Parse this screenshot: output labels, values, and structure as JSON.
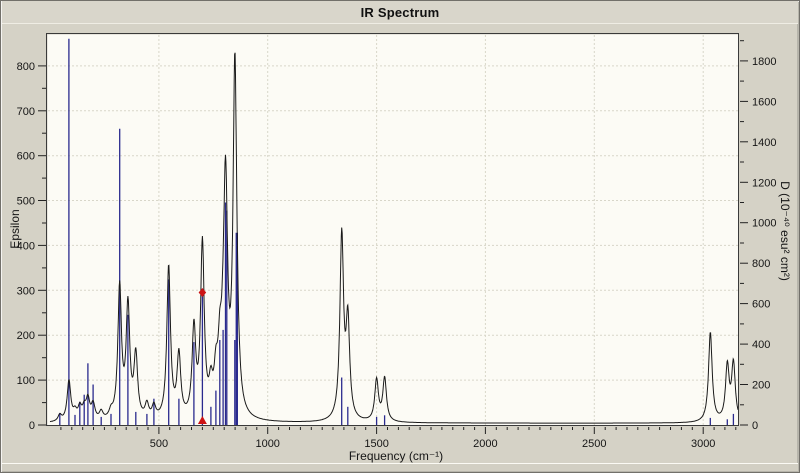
{
  "header": {
    "title": "IR Spectrum"
  },
  "colors": {
    "window_background": "#d5d2c6",
    "plot_background": "#fcfbf5",
    "gridline": "#d8d6c9",
    "plot_frame": "#3a3a3a",
    "envelope_curve": "#1a1a1a",
    "stick": "#2a2a8e",
    "selected_marker": "#cc1414",
    "text": "#151515"
  },
  "chart_data": {
    "type": "line",
    "title": "IR Spectrum",
    "xlabel": "Frequency (cm⁻¹)",
    "ylabel_left": "Epsilon",
    "ylabel_right": "D (10⁻⁴⁰ esu² cm²)",
    "xlim": [
      0,
      3160
    ],
    "ylim_left": [
      0,
      871
    ],
    "ylim_right": [
      0,
      1933
    ],
    "grid": "dashed",
    "x_major_ticks": [
      500,
      1000,
      1500,
      2000,
      2500,
      3000
    ],
    "x_minor_step": 50,
    "y_left_major_ticks": [
      0,
      100,
      200,
      300,
      400,
      500,
      600,
      700,
      800
    ],
    "y_left_minor_step": 50,
    "y_right_major_ticks": [
      0,
      200,
      400,
      600,
      800,
      1000,
      1200,
      1400,
      1600,
      1800
    ],
    "y_right_minor_step": 100,
    "lorentzian_hwhm": 10,
    "baseline_epsilon": 4,
    "series": [
      {
        "name": "epsilon-envelope",
        "axis": "left",
        "style": "lorentzian-sum-curve"
      },
      {
        "name": "dipole-strength-sticks",
        "axis": "right",
        "style": "vertical-sticks"
      }
    ],
    "modes": [
      {
        "frequency": 45,
        "epsilon": 14,
        "d": 60
      },
      {
        "frequency": 87,
        "epsilon": 90,
        "d": 1910
      },
      {
        "frequency": 115,
        "epsilon": 18,
        "d": 50
      },
      {
        "frequency": 137,
        "epsilon": 28,
        "d": 115
      },
      {
        "frequency": 157,
        "epsilon": 25,
        "d": 150
      },
      {
        "frequency": 174,
        "epsilon": 45,
        "d": 305
      },
      {
        "frequency": 198,
        "epsilon": 35,
        "d": 200
      },
      {
        "frequency": 235,
        "epsilon": 18,
        "d": 40
      },
      {
        "frequency": 280,
        "epsilon": 15,
        "d": 55
      },
      {
        "frequency": 320,
        "epsilon": 295,
        "d": 1465
      },
      {
        "frequency": 358,
        "epsilon": 250,
        "d": 545
      },
      {
        "frequency": 394,
        "epsilon": 140,
        "d": 65
      },
      {
        "frequency": 445,
        "epsilon": 32,
        "d": 55
      },
      {
        "frequency": 477,
        "epsilon": 28,
        "d": 130
      },
      {
        "frequency": 545,
        "epsilon": 340,
        "d": 720
      },
      {
        "frequency": 592,
        "epsilon": 140,
        "d": 130
      },
      {
        "frequency": 661,
        "epsilon": 195,
        "d": 410
      },
      {
        "frequency": 700,
        "epsilon": 385,
        "d": 655,
        "selected": true
      },
      {
        "frequency": 739,
        "epsilon": 60,
        "d": 90
      },
      {
        "frequency": 762,
        "epsilon": 80,
        "d": 170
      },
      {
        "frequency": 780,
        "epsilon": 120,
        "d": 420
      },
      {
        "frequency": 795,
        "epsilon": 80,
        "d": 470
      },
      {
        "frequency": 806,
        "epsilon": 450,
        "d": 1100
      },
      {
        "frequency": 812,
        "epsilon": 60,
        "d": 1060
      },
      {
        "frequency": 849,
        "epsilon": 760,
        "d": 420
      },
      {
        "frequency": 858,
        "epsilon": 60,
        "d": 950,
        "stick_width": 2.4
      },
      {
        "frequency": 1340,
        "epsilon": 410,
        "d": 235
      },
      {
        "frequency": 1368,
        "epsilon": 215,
        "d": 90
      },
      {
        "frequency": 1500,
        "epsilon": 92,
        "d": 40
      },
      {
        "frequency": 1537,
        "epsilon": 96,
        "d": 48
      },
      {
        "frequency": 3033,
        "epsilon": 200,
        "d": 35
      },
      {
        "frequency": 3111,
        "epsilon": 122,
        "d": 28
      },
      {
        "frequency": 3139,
        "epsilon": 128,
        "d": 55
      }
    ],
    "selected_mode_marker": {
      "frequency": 700,
      "diamond_at_d": 655,
      "triangle_on_x_axis": true
    }
  }
}
